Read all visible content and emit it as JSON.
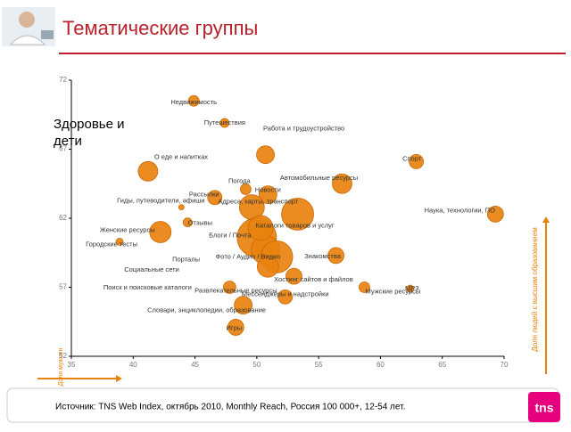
{
  "chart_data": {
    "type": "scatter",
    "title": "Тематические группы",
    "annotation": "Здоровье и дети",
    "x_label": "Доля мужчин",
    "y_label": "Доля людей с высшим образованием",
    "source": "Источник: TNS Web Index, октябрь 2010, Monthly Reach, Россия 100 000+, 12-54 лет.",
    "logo": "tns",
    "color": "#e8820e",
    "xlim": [
      35,
      70
    ],
    "xticks": [
      35,
      40,
      45,
      50,
      55,
      60,
      65,
      70
    ],
    "ylim": [
      52,
      72
    ],
    "yticks": [
      52,
      57,
      62,
      67,
      72
    ],
    "labels": [
      "Недвижимость",
      "Путешествия",
      "Работа и трудоустройство",
      "Спорт",
      "О еде и напитках",
      "Автомобильные ресурсы",
      "Погода",
      "Рассылки",
      "Новости",
      "Адреса, карты, транспорт",
      "Каталоги товаров и услуг",
      "Наука, технологии, ПО",
      "Гиды, путеводители, афиши",
      "Отзывы",
      "Женские ресурсы",
      "Городские тесты",
      "Блоги / Почта",
      "Порталы",
      "Фото / Аудио / Видео",
      "Знакомства",
      "Хостинг сайтов и файлов",
      "Социальные сети",
      "Поиск и поисковые каталоги",
      "Развлекательные ресурсы",
      "Мессенджеры и надстройки",
      "Словари, энциклопедии, образование",
      "Мужские ресурсы",
      "MP3",
      "Игры"
    ],
    "x": [
      44.9,
      47.4,
      50.7,
      62.9,
      41.2,
      56.9,
      49.1,
      46.6,
      50.9,
      49.6,
      53.3,
      69.3,
      43.9,
      44.4,
      42.2,
      38.9,
      50.0,
      50.7,
      51.6,
      56.4,
      53.0,
      50.3,
      50.9,
      47.8,
      52.3,
      48.9,
      58.7,
      62.4,
      48.3
    ],
    "values": [
      70.5,
      68.9,
      66.6,
      66.1,
      65.4,
      64.5,
      64.1,
      63.5,
      63.7,
      62.8,
      62.3,
      62.3,
      62.8,
      61.7,
      61.0,
      60.3,
      60.6,
      59.7,
      59.2,
      59.3,
      57.8,
      61.3,
      58.5,
      57.0,
      56.3,
      55.7,
      57.0,
      56.9,
      54.1
    ],
    "sizes": [
      6,
      5,
      10,
      8,
      11,
      11,
      6,
      8,
      10,
      14,
      18,
      9,
      3,
      5,
      12,
      4,
      22,
      16,
      18,
      9,
      9,
      14,
      12,
      7,
      8,
      10,
      6,
      4,
      9
    ]
  }
}
